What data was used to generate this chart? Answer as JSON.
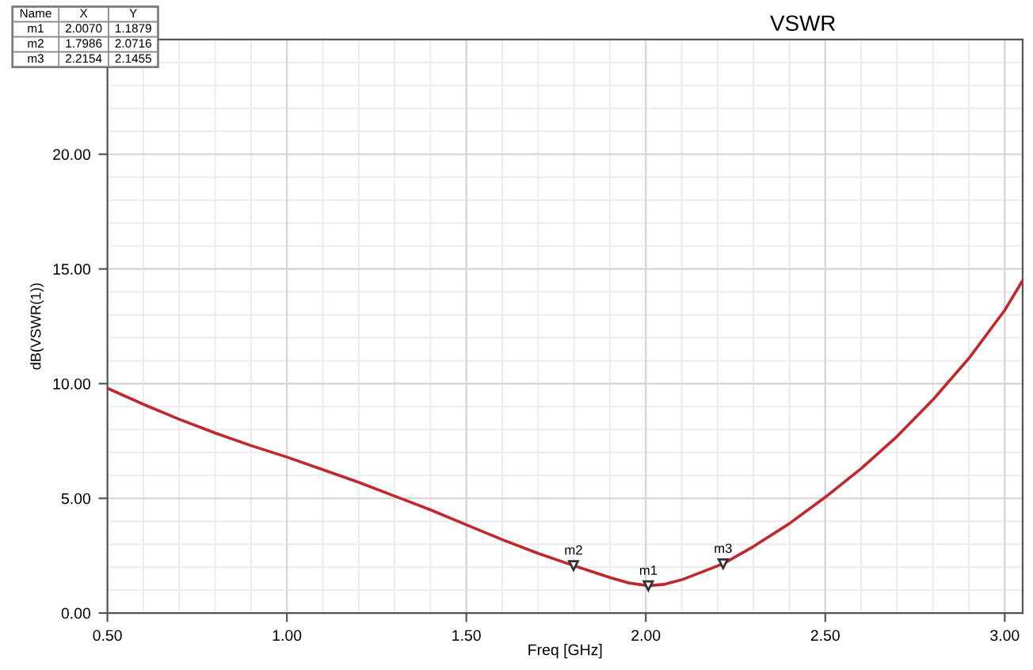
{
  "chart_data": {
    "type": "line",
    "title": "VSWR",
    "xlabel": "Freq [GHz]",
    "ylabel": "dB(VSWR(1))",
    "x": [
      0.5,
      0.6,
      0.7,
      0.8,
      0.9,
      1.0,
      1.1,
      1.2,
      1.3,
      1.4,
      1.5,
      1.6,
      1.7,
      1.7986,
      1.9,
      1.95,
      2.007,
      2.05,
      2.1,
      2.15,
      2.2154,
      2.3,
      2.4,
      2.5,
      2.6,
      2.7,
      2.8,
      2.9,
      3.0,
      3.05
    ],
    "series": [
      {
        "color": "#c0282d",
        "values": [
          9.8,
          9.1,
          8.45,
          7.85,
          7.3,
          6.8,
          6.25,
          5.7,
          5.1,
          4.5,
          3.85,
          3.2,
          2.6,
          2.07,
          1.55,
          1.32,
          1.19,
          1.25,
          1.45,
          1.75,
          2.15,
          2.9,
          3.9,
          5.05,
          6.3,
          7.7,
          9.3,
          11.1,
          13.2,
          14.5
        ]
      }
    ],
    "xlim": [
      0.5,
      3.05
    ],
    "ylim": [
      0,
      25
    ],
    "xticks": [
      {
        "value": 0.5,
        "label": "0.50"
      },
      {
        "value": 1.0,
        "label": "1.00"
      },
      {
        "value": 1.5,
        "label": "1.50"
      },
      {
        "value": 2.0,
        "label": "2.00"
      },
      {
        "value": 2.5,
        "label": "2.50"
      },
      {
        "value": 3.0,
        "label": "3.00"
      }
    ],
    "yticks": [
      {
        "value": 0,
        "label": "0.00"
      },
      {
        "value": 5,
        "label": "5.00"
      },
      {
        "value": 10,
        "label": "10.00"
      },
      {
        "value": 15,
        "label": "15.00"
      },
      {
        "value": 20,
        "label": "20.00"
      }
    ],
    "grid": true,
    "legend": false,
    "marker": "none",
    "line_style": "solid",
    "annotations": [
      {
        "text": "m1",
        "x": 2.007,
        "y": 1.1879
      },
      {
        "text": "m2",
        "x": 1.7986,
        "y": 2.0716
      },
      {
        "text": "m3",
        "x": 2.2154,
        "y": 2.1455
      },
      "Name",
      "X",
      "Y",
      "m1",
      "2.0070",
      "1.1879",
      "m2",
      "1.7986",
      "2.0716",
      "m3",
      "2.2154",
      "2.1455"
    ]
  }
}
